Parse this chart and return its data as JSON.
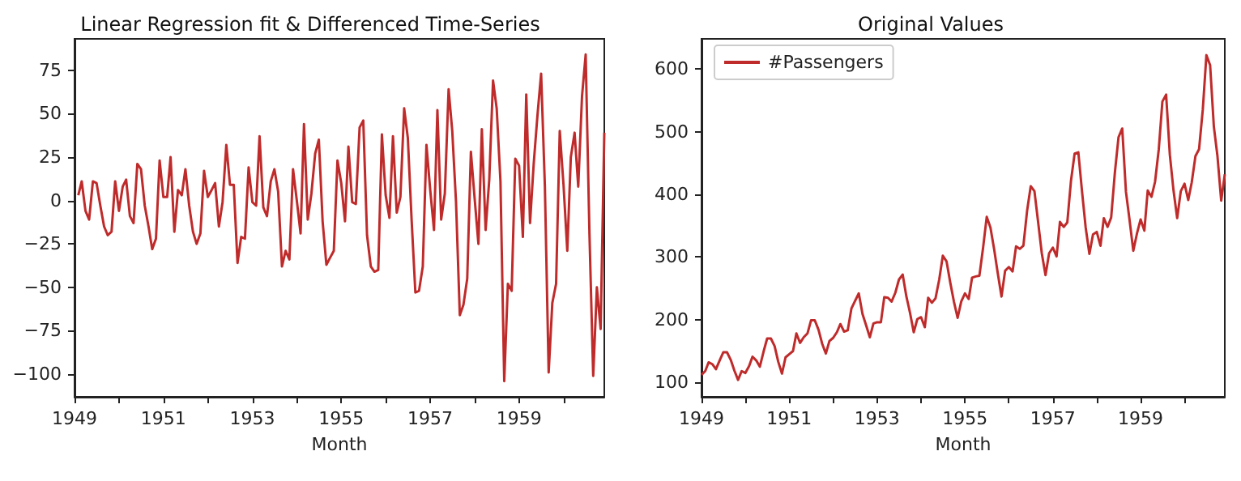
{
  "chart_data": [
    {
      "type": "line",
      "title": "Linear Regression fit & Differenced Time-Series",
      "xlabel": "Month",
      "x": [
        "1949-02",
        "1949-03",
        "1949-04",
        "1949-05",
        "1949-06",
        "1949-07",
        "1949-08",
        "1949-09",
        "1949-10",
        "1949-11",
        "1949-12",
        "1950-01",
        "1950-02",
        "1950-03",
        "1950-04",
        "1950-05",
        "1950-06",
        "1950-07",
        "1950-08",
        "1950-09",
        "1950-10",
        "1950-11",
        "1950-12",
        "1951-01",
        "1951-02",
        "1951-03",
        "1951-04",
        "1951-05",
        "1951-06",
        "1951-07",
        "1951-08",
        "1951-09",
        "1951-10",
        "1951-11",
        "1951-12",
        "1952-01",
        "1952-02",
        "1952-03",
        "1952-04",
        "1952-05",
        "1952-06",
        "1952-07",
        "1952-08",
        "1952-09",
        "1952-10",
        "1952-11",
        "1952-12",
        "1953-01",
        "1953-02",
        "1953-03",
        "1953-04",
        "1953-05",
        "1953-06",
        "1953-07",
        "1953-08",
        "1953-09",
        "1953-10",
        "1953-11",
        "1953-12",
        "1954-01",
        "1954-02",
        "1954-03",
        "1954-04",
        "1954-05",
        "1954-06",
        "1954-07",
        "1954-08",
        "1954-09",
        "1954-10",
        "1954-11",
        "1954-12",
        "1955-01",
        "1955-02",
        "1955-03",
        "1955-04",
        "1955-05",
        "1955-06",
        "1955-07",
        "1955-08",
        "1955-09",
        "1955-10",
        "1955-11",
        "1955-12",
        "1956-01",
        "1956-02",
        "1956-03",
        "1956-04",
        "1956-05",
        "1956-06",
        "1956-07",
        "1956-08",
        "1956-09",
        "1956-10",
        "1956-11",
        "1956-12",
        "1957-01",
        "1957-02",
        "1957-03",
        "1957-04",
        "1957-05",
        "1957-06",
        "1957-07",
        "1957-08",
        "1957-09",
        "1957-10",
        "1957-11",
        "1957-12",
        "1958-01",
        "1958-02",
        "1958-03",
        "1958-04",
        "1958-05",
        "1958-06",
        "1958-07",
        "1958-08",
        "1958-09",
        "1958-10",
        "1958-11",
        "1958-12",
        "1959-01",
        "1959-02",
        "1959-03",
        "1959-04",
        "1959-05",
        "1959-06",
        "1959-07",
        "1959-08",
        "1959-09",
        "1959-10",
        "1959-11",
        "1959-12",
        "1960-01",
        "1960-02",
        "1960-03",
        "1960-04",
        "1960-05",
        "1960-06",
        "1960-07",
        "1960-08",
        "1960-09",
        "1960-10",
        "1960-11",
        "1960-12"
      ],
      "series": [
        {
          "color": "#bf2b2b",
          "values": [
            3,
            11,
            -6,
            -11,
            11,
            10,
            -3,
            -15,
            -20,
            -18,
            11,
            -6,
            8,
            12,
            -9,
            -13,
            21,
            18,
            -3,
            -15,
            -28,
            -22,
            23,
            2,
            2,
            25,
            -18,
            6,
            3,
            18,
            -3,
            -18,
            -25,
            -19,
            17,
            2,
            6,
            10,
            -15,
            -1,
            32,
            9,
            9,
            -36,
            -21,
            -22,
            19,
            -1,
            -3,
            37,
            -4,
            -9,
            11,
            18,
            5,
            -38,
            -29,
            -34,
            18,
            0,
            -19,
            44,
            -11,
            4,
            27,
            35,
            -12,
            -37,
            -33,
            -29,
            23,
            10,
            -12,
            31,
            -1,
            -2,
            42,
            46,
            -20,
            -38,
            -41,
            -40,
            38,
            3,
            -10,
            37,
            -7,
            2,
            53,
            36,
            -11,
            -53,
            -52,
            -38,
            32,
            6,
            -17,
            52,
            -11,
            4,
            64,
            40,
            -1,
            -66,
            -60,
            -45,
            28,
            1,
            -25,
            41,
            -17,
            12,
            69,
            53,
            11,
            -104,
            -48,
            -52,
            24,
            20,
            -21,
            61,
            -13,
            21,
            49,
            73,
            8,
            -99,
            -59,
            -48,
            40,
            9,
            -29,
            25,
            39,
            8,
            60,
            84,
            -19,
            -101,
            -50,
            -74,
            39
          ]
        }
      ],
      "xlim": [
        "1949-01",
        "1960-12"
      ],
      "xticks": [
        {
          "value": "1949",
          "label": "1949"
        },
        {
          "value": "1950",
          "label": null
        },
        {
          "value": "1951",
          "label": "1951"
        },
        {
          "value": "1952",
          "label": null
        },
        {
          "value": "1953",
          "label": "1953"
        },
        {
          "value": "1954",
          "label": null
        },
        {
          "value": "1955",
          "label": "1955"
        },
        {
          "value": "1956",
          "label": null
        },
        {
          "value": "1957",
          "label": "1957"
        },
        {
          "value": "1958",
          "label": null
        },
        {
          "value": "1959",
          "label": "1959"
        },
        {
          "value": "1960",
          "label": null
        }
      ],
      "ylim": [
        -113,
        93
      ],
      "yticks": [
        -100,
        -75,
        -50,
        -25,
        0,
        25,
        50,
        75
      ],
      "grid": false,
      "legend": false
    },
    {
      "type": "line",
      "title": "Original Values",
      "xlabel": "Month",
      "x": [
        "1949-01",
        "1949-02",
        "1949-03",
        "1949-04",
        "1949-05",
        "1949-06",
        "1949-07",
        "1949-08",
        "1949-09",
        "1949-10",
        "1949-11",
        "1949-12",
        "1950-01",
        "1950-02",
        "1950-03",
        "1950-04",
        "1950-05",
        "1950-06",
        "1950-07",
        "1950-08",
        "1950-09",
        "1950-10",
        "1950-11",
        "1950-12",
        "1951-01",
        "1951-02",
        "1951-03",
        "1951-04",
        "1951-05",
        "1951-06",
        "1951-07",
        "1951-08",
        "1951-09",
        "1951-10",
        "1951-11",
        "1951-12",
        "1952-01",
        "1952-02",
        "1952-03",
        "1952-04",
        "1952-05",
        "1952-06",
        "1952-07",
        "1952-08",
        "1952-09",
        "1952-10",
        "1952-11",
        "1952-12",
        "1953-01",
        "1953-02",
        "1953-03",
        "1953-04",
        "1953-05",
        "1953-06",
        "1953-07",
        "1953-08",
        "1953-09",
        "1953-10",
        "1953-11",
        "1953-12",
        "1954-01",
        "1954-02",
        "1954-03",
        "1954-04",
        "1954-05",
        "1954-06",
        "1954-07",
        "1954-08",
        "1954-09",
        "1954-10",
        "1954-11",
        "1954-12",
        "1955-01",
        "1955-02",
        "1955-03",
        "1955-04",
        "1955-05",
        "1955-06",
        "1955-07",
        "1955-08",
        "1955-09",
        "1955-10",
        "1955-11",
        "1955-12",
        "1956-01",
        "1956-02",
        "1956-03",
        "1956-04",
        "1956-05",
        "1956-06",
        "1956-07",
        "1956-08",
        "1956-09",
        "1956-10",
        "1956-11",
        "1956-12",
        "1957-01",
        "1957-02",
        "1957-03",
        "1957-04",
        "1957-05",
        "1957-06",
        "1957-07",
        "1957-08",
        "1957-09",
        "1957-10",
        "1957-11",
        "1957-12",
        "1958-01",
        "1958-02",
        "1958-03",
        "1958-04",
        "1958-05",
        "1958-06",
        "1958-07",
        "1958-08",
        "1958-09",
        "1958-10",
        "1958-11",
        "1958-12",
        "1959-01",
        "1959-02",
        "1959-03",
        "1959-04",
        "1959-05",
        "1959-06",
        "1959-07",
        "1959-08",
        "1959-09",
        "1959-10",
        "1959-11",
        "1959-12",
        "1960-01",
        "1960-02",
        "1960-03",
        "1960-04",
        "1960-05",
        "1960-06",
        "1960-07",
        "1960-08",
        "1960-09",
        "1960-10",
        "1960-11",
        "1960-12"
      ],
      "series": [
        {
          "name": "#Passengers",
          "color": "#bf2b2b",
          "values": [
            112,
            118,
            132,
            129,
            121,
            135,
            148,
            148,
            136,
            119,
            104,
            118,
            115,
            126,
            141,
            135,
            125,
            149,
            170,
            170,
            158,
            133,
            114,
            140,
            145,
            150,
            178,
            163,
            172,
            178,
            199,
            199,
            184,
            162,
            146,
            166,
            171,
            180,
            193,
            181,
            183,
            218,
            230,
            242,
            209,
            191,
            172,
            194,
            196,
            196,
            236,
            235,
            229,
            243,
            264,
            272,
            237,
            211,
            180,
            201,
            204,
            188,
            235,
            227,
            234,
            264,
            302,
            293,
            259,
            229,
            203,
            229,
            242,
            233,
            267,
            269,
            270,
            315,
            364,
            347,
            312,
            274,
            237,
            278,
            284,
            277,
            317,
            313,
            318,
            374,
            413,
            405,
            355,
            306,
            271,
            306,
            315,
            301,
            356,
            348,
            355,
            422,
            465,
            467,
            404,
            347,
            305,
            336,
            340,
            318,
            362,
            348,
            363,
            435,
            491,
            505,
            404,
            359,
            310,
            337,
            360,
            342,
            406,
            396,
            420,
            472,
            548,
            559,
            463,
            407,
            362,
            405,
            417,
            391,
            419,
            461,
            472,
            535,
            622,
            606,
            508,
            461,
            390,
            432
          ]
        }
      ],
      "xlim": [
        "1949-01",
        "1960-12"
      ],
      "xticks": [
        {
          "value": "1949",
          "label": "1949"
        },
        {
          "value": "1950",
          "label": null
        },
        {
          "value": "1951",
          "label": "1951"
        },
        {
          "value": "1952",
          "label": null
        },
        {
          "value": "1953",
          "label": "1953"
        },
        {
          "value": "1954",
          "label": null
        },
        {
          "value": "1955",
          "label": "1955"
        },
        {
          "value": "1956",
          "label": null
        },
        {
          "value": "1957",
          "label": "1957"
        },
        {
          "value": "1958",
          "label": null
        },
        {
          "value": "1959",
          "label": "1959"
        },
        {
          "value": "1960",
          "label": null
        }
      ],
      "ylim": [
        77,
        648
      ],
      "yticks": [
        100,
        200,
        300,
        400,
        500,
        600
      ],
      "grid": false,
      "legend": "top left"
    }
  ]
}
